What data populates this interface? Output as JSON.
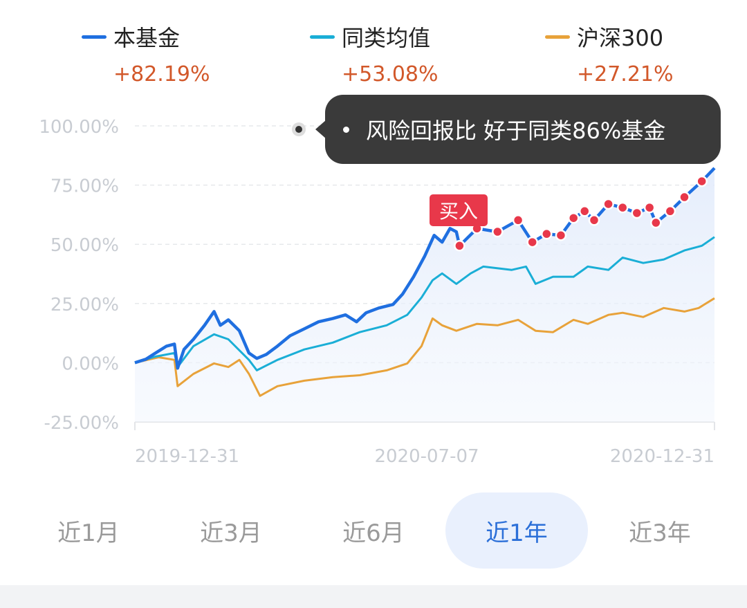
{
  "legend": [
    {
      "name": "本基金",
      "change": "+82.19%",
      "color": "#1f6fe0"
    },
    {
      "name": "同类均值",
      "change": "+53.08%",
      "color": "#1aaed6"
    },
    {
      "name": "沪深300",
      "change": "+27.21%",
      "color": "#e8a23a"
    }
  ],
  "tooltip": {
    "text": "风险回报比 好于同类86%基金"
  },
  "buy_label": "买入",
  "tabs": [
    {
      "label": "近1月",
      "active": false
    },
    {
      "label": "近3月",
      "active": false
    },
    {
      "label": "近6月",
      "active": false
    },
    {
      "label": "近1年",
      "active": true
    },
    {
      "label": "近3年",
      "active": false
    }
  ],
  "chart_data": {
    "type": "line",
    "xlim": [
      "2019-12-31",
      "2020-12-31"
    ],
    "ylim": [
      -25,
      100
    ],
    "y_ticks": [
      "100.00%",
      "75.00%",
      "50.00%",
      "25.00%",
      "0.00%",
      "-25.00%"
    ],
    "y_tick_values": [
      100,
      75,
      50,
      25,
      0,
      -25
    ],
    "x_ticks": [
      "2019-12-31",
      "2020-07-07",
      "2020-12-31"
    ],
    "grid": true,
    "legend_position": "top",
    "buy_marker_date": "2020-07-21",
    "buy_marker_color": "#e8384a",
    "series": [
      {
        "name": "本基金",
        "color": "#1f6fe0",
        "x": [
          "2019-12-31",
          "2020-01-07",
          "2020-01-13",
          "2020-01-20",
          "2020-01-25",
          "2020-01-27",
          "2020-01-31",
          "2020-02-06",
          "2020-02-13",
          "2020-02-19",
          "2020-02-23",
          "2020-02-28",
          "2020-03-06",
          "2020-03-12",
          "2020-03-17",
          "2020-03-23",
          "2020-03-30",
          "2020-04-07",
          "2020-04-16",
          "2020-04-25",
          "2020-05-04",
          "2020-05-12",
          "2020-05-19",
          "2020-05-25",
          "2020-06-02",
          "2020-06-11",
          "2020-06-17",
          "2020-06-24",
          "2020-07-01",
          "2020-07-07",
          "2020-07-12",
          "2020-07-17",
          "2020-07-21",
          "2020-07-23",
          "2020-08-03",
          "2020-08-16",
          "2020-08-29",
          "2020-09-07",
          "2020-09-16",
          "2020-09-25",
          "2020-10-03",
          "2020-10-10",
          "2020-10-16",
          "2020-10-25",
          "2020-11-03",
          "2020-11-12",
          "2020-11-20",
          "2020-11-24",
          "2020-12-03",
          "2020-12-12",
          "2020-12-23",
          "2020-12-31"
        ],
        "y": [
          0,
          1.5,
          4.1,
          7.0,
          7.9,
          -2.3,
          5.6,
          9.9,
          15.8,
          21.6,
          15.8,
          18.1,
          13.5,
          4.1,
          1.8,
          3.5,
          7.0,
          11.4,
          14.3,
          17.3,
          18.7,
          20.2,
          17.3,
          21.1,
          23.1,
          24.6,
          28.9,
          36.3,
          45.0,
          53.8,
          50.9,
          56.7,
          55.3,
          49.4,
          56.7,
          55.3,
          60.2,
          50.9,
          54.4,
          53.8,
          61.1,
          64.0,
          60.2,
          67.0,
          65.5,
          63.2,
          65.5,
          59.1,
          64.0,
          69.9,
          76.6,
          82.19
        ]
      },
      {
        "name": "同类均值",
        "color": "#1aaed6",
        "x": [
          "2019-12-31",
          "2020-01-13",
          "2020-01-25",
          "2020-01-27",
          "2020-02-06",
          "2020-02-19",
          "2020-02-28",
          "2020-03-12",
          "2020-03-17",
          "2020-03-30",
          "2020-04-16",
          "2020-05-04",
          "2020-05-21",
          "2020-06-07",
          "2020-06-20",
          "2020-06-29",
          "2020-07-06",
          "2020-07-12",
          "2020-07-21",
          "2020-07-30",
          "2020-08-07",
          "2020-08-25",
          "2020-09-03",
          "2020-09-09",
          "2020-09-20",
          "2020-10-03",
          "2020-10-12",
          "2020-10-25",
          "2020-11-03",
          "2020-11-16",
          "2020-11-29",
          "2020-12-12",
          "2020-12-23",
          "2020-12-31"
        ],
        "y": [
          0,
          2.6,
          4.1,
          -1.8,
          7.0,
          12.0,
          9.9,
          1.2,
          -3.2,
          1.2,
          5.6,
          8.5,
          12.9,
          15.8,
          20.2,
          27.5,
          34.8,
          37.7,
          33.3,
          37.7,
          40.6,
          39.2,
          40.6,
          33.3,
          36.3,
          36.3,
          40.6,
          39.2,
          44.4,
          42.1,
          43.6,
          47.4,
          49.4,
          53.08
        ]
      },
      {
        "name": "沪深300",
        "color": "#e8a23a",
        "x": [
          "2019-12-31",
          "2020-01-15",
          "2020-01-25",
          "2020-01-27",
          "2020-02-06",
          "2020-02-19",
          "2020-02-28",
          "2020-03-06",
          "2020-03-12",
          "2020-03-19",
          "2020-03-30",
          "2020-04-16",
          "2020-05-04",
          "2020-05-21",
          "2020-06-07",
          "2020-06-20",
          "2020-06-29",
          "2020-07-06",
          "2020-07-12",
          "2020-07-21",
          "2020-08-03",
          "2020-08-16",
          "2020-08-29",
          "2020-09-09",
          "2020-09-20",
          "2020-10-03",
          "2020-10-12",
          "2020-10-25",
          "2020-11-03",
          "2020-11-16",
          "2020-11-29",
          "2020-12-12",
          "2020-12-21",
          "2020-12-31"
        ],
        "y": [
          0,
          2.3,
          1.2,
          -9.9,
          -4.7,
          -0.3,
          -1.8,
          1.2,
          -4.7,
          -14.0,
          -9.9,
          -7.6,
          -6.1,
          -5.3,
          -3.2,
          -0.3,
          7.0,
          18.7,
          15.8,
          13.5,
          16.4,
          15.8,
          18.1,
          13.5,
          12.9,
          18.1,
          16.4,
          20.2,
          21.1,
          19.3,
          23.1,
          21.6,
          23.1,
          27.21
        ]
      }
    ]
  }
}
